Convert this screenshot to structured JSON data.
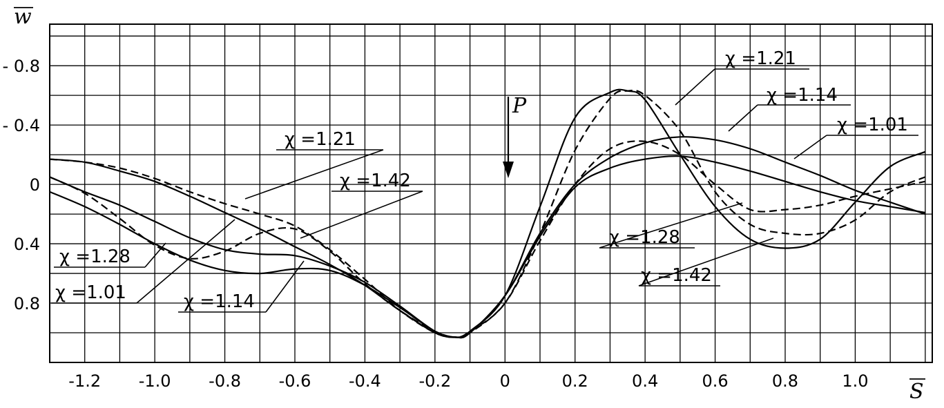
{
  "chart_data": {
    "type": "line",
    "title": "",
    "xlabel": "S",
    "ylabel": "w",
    "xlim": [
      -1.3,
      1.22
    ],
    "ylim": [
      1.2,
      -1.08
    ],
    "grid": true,
    "x_ticks": [
      {
        "value": -1.2,
        "label": "-1.2"
      },
      {
        "value": -1.0,
        "label": "-1.0"
      },
      {
        "value": -0.8,
        "label": "-0.8"
      },
      {
        "value": -0.6,
        "label": "-0.6"
      },
      {
        "value": -0.4,
        "label": "-0.4"
      },
      {
        "value": -0.2,
        "label": "-0.2"
      },
      {
        "value": 0,
        "label": "0"
      },
      {
        "value": 0.2,
        "label": "0.2"
      },
      {
        "value": 0.4,
        "label": "0.4"
      },
      {
        "value": 0.6,
        "label": "0.6"
      },
      {
        "value": 0.8,
        "label": "0.8"
      },
      {
        "value": 1.0,
        "label": "1.0"
      }
    ],
    "y_ticks": [
      {
        "value": -0.8,
        "label": "- 0.8"
      },
      {
        "value": -0.4,
        "label": "- 0.4"
      },
      {
        "value": 0,
        "label": "0"
      },
      {
        "value": 0.4,
        "label": "0.4"
      },
      {
        "value": 0.8,
        "label": "0.8"
      }
    ],
    "load": {
      "label": "P",
      "x": 0
    },
    "series": [
      {
        "name": "χ =1.01",
        "style": "solid",
        "x": [
          -1.3,
          -1.2,
          -1.1,
          -1.0,
          -0.9,
          -0.8,
          -0.7,
          -0.6,
          -0.5,
          -0.4,
          -0.3,
          -0.2,
          -0.14,
          -0.1,
          0,
          0.1,
          0.2,
          0.3,
          0.4,
          0.5,
          0.6,
          0.7,
          0.8,
          0.9,
          1.0,
          1.1,
          1.2
        ],
        "y": [
          -0.05,
          0.05,
          0.14,
          0.25,
          0.36,
          0.44,
          0.47,
          0.48,
          0.55,
          0.66,
          0.82,
          0.99,
          1.03,
          1.0,
          0.75,
          0.35,
          0.02,
          -0.11,
          -0.17,
          -0.19,
          -0.15,
          -0.09,
          -0.02,
          0.05,
          0.11,
          0.15,
          0.19
        ]
      },
      {
        "name": "χ =1.14",
        "style": "solid",
        "x": [
          -1.3,
          -1.2,
          -1.1,
          -1.0,
          -0.9,
          -0.8,
          -0.7,
          -0.6,
          -0.5,
          -0.4,
          -0.3,
          -0.2,
          -0.14,
          -0.1,
          0,
          0.1,
          0.2,
          0.3,
          0.4,
          0.5,
          0.6,
          0.7,
          0.8,
          0.9,
          1.0,
          1.1,
          1.2
        ],
        "y": [
          0.05,
          0.15,
          0.27,
          0.4,
          0.51,
          0.58,
          0.6,
          0.57,
          0.58,
          0.68,
          0.83,
          0.99,
          1.03,
          1.0,
          0.75,
          0.33,
          0.0,
          -0.18,
          -0.28,
          -0.32,
          -0.3,
          -0.24,
          -0.15,
          -0.06,
          0.04,
          0.12,
          0.2
        ]
      },
      {
        "name": "χ =1.21",
        "style": "dashed",
        "x": [
          -1.3,
          -1.2,
          -1.1,
          -1.0,
          -0.9,
          -0.8,
          -0.7,
          -0.6,
          -0.5,
          -0.4,
          -0.3,
          -0.2,
          -0.14,
          -0.1,
          0,
          0.1,
          0.2,
          0.3,
          0.35,
          0.4,
          0.5,
          0.6,
          0.7,
          0.8,
          0.9,
          1.0,
          1.1,
          1.2
        ],
        "y": [
          -0.17,
          -0.15,
          -0.11,
          -0.04,
          0.05,
          0.13,
          0.2,
          0.28,
          0.44,
          0.64,
          0.85,
          1.0,
          1.03,
          0.99,
          0.8,
          0.33,
          -0.23,
          -0.58,
          -0.63,
          -0.6,
          -0.36,
          0.05,
          0.27,
          0.33,
          0.33,
          0.24,
          0.05,
          -0.05
        ]
      },
      {
        "name": "χ =1.28",
        "style": "dashed",
        "x": [
          -1.3,
          -1.2,
          -1.1,
          -1.0,
          -0.9,
          -0.8,
          -0.7,
          -0.6,
          -0.5,
          -0.4,
          -0.3,
          -0.2,
          -0.14,
          -0.1,
          0,
          0.1,
          0.2,
          0.3,
          0.4,
          0.5,
          0.6,
          0.7,
          0.8,
          0.9,
          1.0,
          1.1,
          1.2
        ],
        "y": [
          -0.05,
          0.06,
          0.23,
          0.41,
          0.5,
          0.45,
          0.33,
          0.3,
          0.45,
          0.67,
          0.85,
          0.99,
          1.03,
          1.0,
          0.8,
          0.38,
          0.0,
          -0.24,
          -0.29,
          -0.2,
          0.0,
          0.17,
          0.17,
          0.14,
          0.08,
          0.03,
          -0.02
        ]
      },
      {
        "name": "χ =1.42",
        "style": "solid",
        "x": [
          -1.3,
          -1.2,
          -1.1,
          -1.0,
          -0.9,
          -0.8,
          -0.7,
          -0.6,
          -0.5,
          -0.4,
          -0.3,
          -0.2,
          -0.14,
          -0.1,
          0,
          0.1,
          0.2,
          0.3,
          0.35,
          0.4,
          0.5,
          0.6,
          0.7,
          0.8,
          0.9,
          1.0,
          1.1,
          1.2
        ],
        "y": [
          -0.17,
          -0.15,
          -0.09,
          -0.02,
          0.08,
          0.19,
          0.3,
          0.42,
          0.54,
          0.68,
          0.85,
          1.0,
          1.03,
          0.99,
          0.75,
          0.15,
          -0.45,
          -0.62,
          -0.63,
          -0.57,
          -0.2,
          0.15,
          0.37,
          0.43,
          0.37,
          0.12,
          -0.12,
          -0.22
        ]
      }
    ],
    "annotations": [
      {
        "text": "χ =1.21",
        "series": "χ =1.21",
        "side": "left"
      },
      {
        "text": "χ =1.42",
        "series": "χ =1.42",
        "side": "left"
      },
      {
        "text": "χ =1.28",
        "series": "χ =1.28",
        "side": "left"
      },
      {
        "text": "χ =1.01",
        "series": "χ =1.01",
        "side": "left"
      },
      {
        "text": "χ =1.14",
        "series": "χ =1.14",
        "side": "left"
      },
      {
        "text": "χ =1.21",
        "series": "χ =1.21",
        "side": "right"
      },
      {
        "text": "χ =1.14",
        "series": "χ =1.14",
        "side": "right"
      },
      {
        "text": "χ =1.01",
        "series": "χ =1.01",
        "side": "right"
      },
      {
        "text": "χ =1.28",
        "series": "χ =1.28",
        "side": "right"
      },
      {
        "text": "χ =1.42",
        "series": "χ =1.42",
        "side": "right"
      }
    ]
  }
}
